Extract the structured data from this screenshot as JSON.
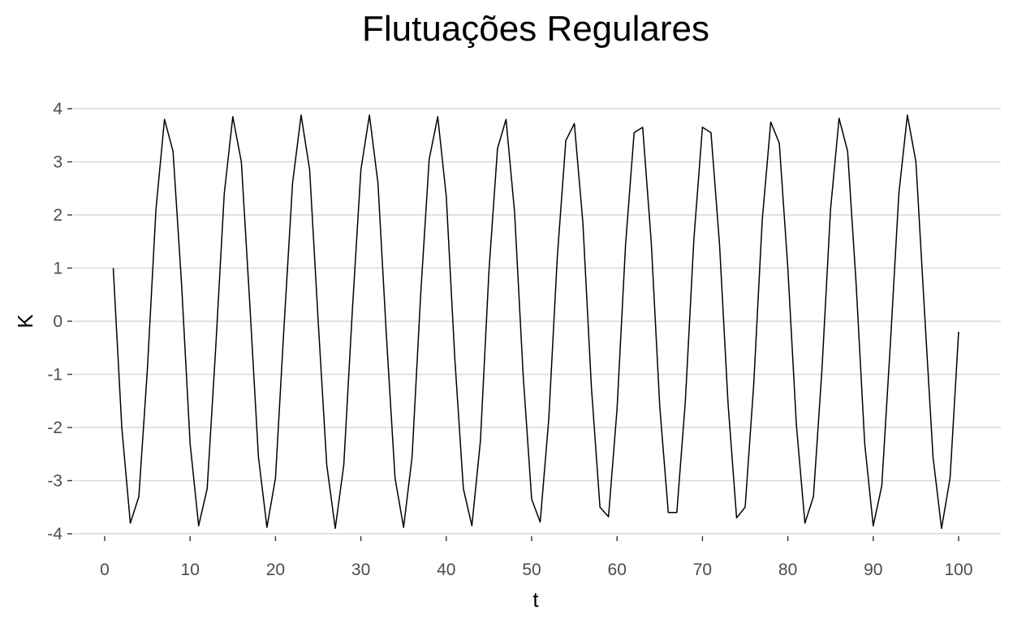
{
  "chart_data": {
    "type": "line",
    "title": "Flutuações Regulares",
    "xlabel": "t",
    "ylabel": "K",
    "xlim": [
      1,
      100
    ],
    "ylim": [
      -4,
      4
    ],
    "x_ticks": [
      0,
      10,
      20,
      30,
      40,
      50,
      60,
      70,
      80,
      90,
      100
    ],
    "y_ticks": [
      4,
      3,
      2,
      1,
      0,
      -1,
      -2,
      -3,
      -4
    ],
    "grid": true,
    "legend": "none",
    "series_color": "#000000",
    "series": [
      {
        "x": [
          1,
          2,
          3,
          4,
          5,
          6,
          7,
          8,
          9,
          10,
          11,
          12,
          13,
          14,
          15,
          16,
          17,
          18,
          19,
          20,
          21,
          22,
          23,
          24,
          25,
          26,
          27,
          28,
          29,
          30,
          31,
          32,
          33,
          34,
          35,
          36,
          37,
          38,
          39,
          40,
          41,
          42,
          43,
          44,
          45,
          46,
          47,
          48,
          49,
          50,
          51,
          52,
          53,
          54,
          55,
          56,
          57,
          58,
          59,
          60,
          61,
          62,
          63,
          64,
          65,
          66,
          67,
          68,
          69,
          70,
          71,
          72,
          73,
          74,
          75,
          76,
          77,
          78,
          79,
          80,
          81,
          82,
          83,
          84,
          85,
          86,
          87,
          88,
          89,
          90,
          91,
          92,
          93,
          94,
          95,
          96,
          97,
          98,
          99,
          100
        ],
        "values": [
          1.0,
          -2.0,
          -3.8,
          -3.3,
          -0.9,
          2.1,
          3.8,
          3.2,
          0.7,
          -2.3,
          -3.85,
          -3.15,
          -0.5,
          2.4,
          3.85,
          3.0,
          0.3,
          -2.55,
          -3.88,
          -2.95,
          -0.1,
          2.6,
          3.88,
          2.85,
          0.0,
          -2.7,
          -3.9,
          -2.7,
          0.2,
          2.85,
          3.88,
          2.6,
          -0.3,
          -2.95,
          -3.88,
          -2.55,
          0.5,
          3.05,
          3.85,
          2.35,
          -0.7,
          -3.15,
          -3.85,
          -2.25,
          0.95,
          3.25,
          3.8,
          2.05,
          -1.0,
          -3.35,
          -3.78,
          -1.85,
          1.2,
          3.4,
          3.72,
          1.85,
          -1.25,
          -3.5,
          -3.68,
          -1.65,
          1.45,
          3.55,
          3.65,
          1.5,
          -1.6,
          -3.6,
          -3.6,
          -1.5,
          1.55,
          3.65,
          3.55,
          1.45,
          -1.55,
          -3.7,
          -3.5,
          -1.2,
          1.9,
          3.75,
          3.35,
          1.0,
          -1.95,
          -3.8,
          -3.3,
          -0.9,
          2.1,
          3.82,
          3.2,
          0.7,
          -2.3,
          -3.85,
          -3.1,
          -0.45,
          2.4,
          3.88,
          3.0,
          0.2,
          -2.55,
          -3.9,
          -2.95,
          -0.2
        ]
      }
    ]
  }
}
